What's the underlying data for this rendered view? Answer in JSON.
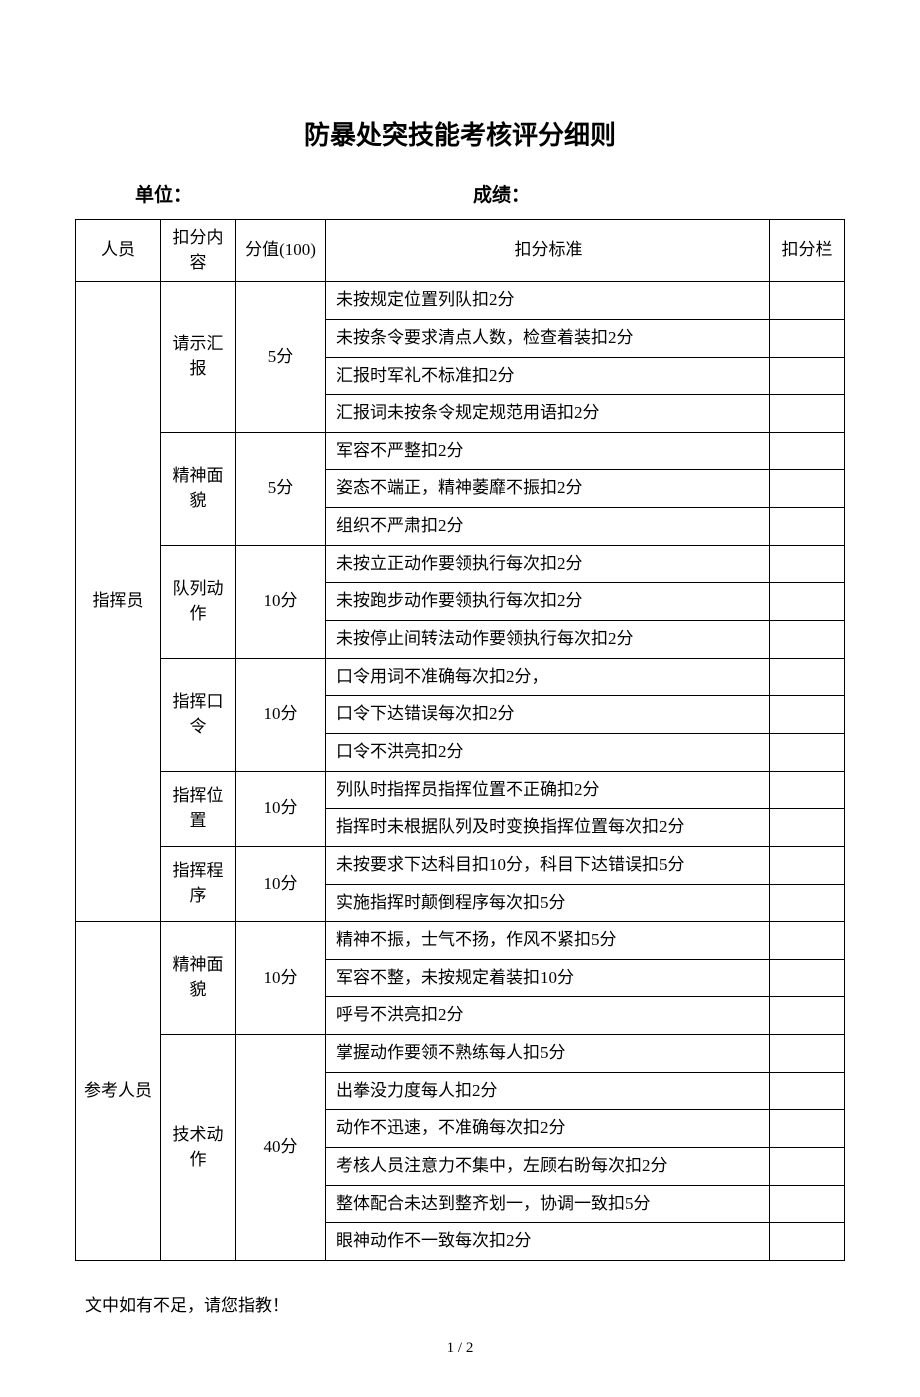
{
  "title": "防暴处突技能考核评分细则",
  "header": {
    "unit_label": "单位：",
    "score_label": "成绩："
  },
  "columns": {
    "person": "人员",
    "content": "扣分内容",
    "score": "分值(100)",
    "standard": "扣分标准",
    "mark": "扣分栏"
  },
  "sections": [
    {
      "person": "指挥员",
      "groups": [
        {
          "content": "请示汇报",
          "score": "5分",
          "rows": [
            "未按规定位置列队扣2分",
            "未按条令要求清点人数，检查着装扣2分",
            "汇报时军礼不标准扣2分",
            "汇报词未按条令规定规范用语扣2分"
          ]
        },
        {
          "content": "精神面貌",
          "score": "5分",
          "rows": [
            "军容不严整扣2分",
            "姿态不端正，精神萎靡不振扣2分",
            "组织不严肃扣2分"
          ]
        },
        {
          "content": "队列动作",
          "score": "10分",
          "rows": [
            "未按立正动作要领执行每次扣2分",
            "未按跑步动作要领执行每次扣2分",
            "未按停止间转法动作要领执行每次扣2分"
          ]
        },
        {
          "content": "指挥口令",
          "score": "10分",
          "rows": [
            "口令用词不准确每次扣2分，",
            "口令下达错误每次扣2分",
            "口令不洪亮扣2分"
          ]
        },
        {
          "content": "指挥位置",
          "score": "10分",
          "rows": [
            "列队时指挥员指挥位置不正确扣2分",
            "指挥时未根据队列及时变换指挥位置每次扣2分"
          ]
        },
        {
          "content": "指挥程序",
          "score": "10分",
          "rows": [
            "未按要求下达科目扣10分，科目下达错误扣5分",
            "实施指挥时颠倒程序每次扣5分"
          ]
        }
      ]
    },
    {
      "person": "参考人员",
      "groups": [
        {
          "content": "精神面貌",
          "score": "10分",
          "rows": [
            "精神不振，士气不扬，作风不紧扣5分",
            "军容不整，未按规定着装扣10分",
            "呼号不洪亮扣2分"
          ]
        },
        {
          "content": "技术动作",
          "score": "40分",
          "rows": [
            "掌握动作要领不熟练每人扣5分",
            "出拳没力度每人扣2分",
            "动作不迅速，不准确每次扣2分",
            "考核人员注意力不集中，左顾右盼每次扣2分",
            "整体配合未达到整齐划一，协调一致扣5分",
            "眼神动作不一致每次扣2分"
          ]
        }
      ]
    }
  ],
  "footer_note": "文中如有不足，请您指教！",
  "page_number": "1 / 2"
}
